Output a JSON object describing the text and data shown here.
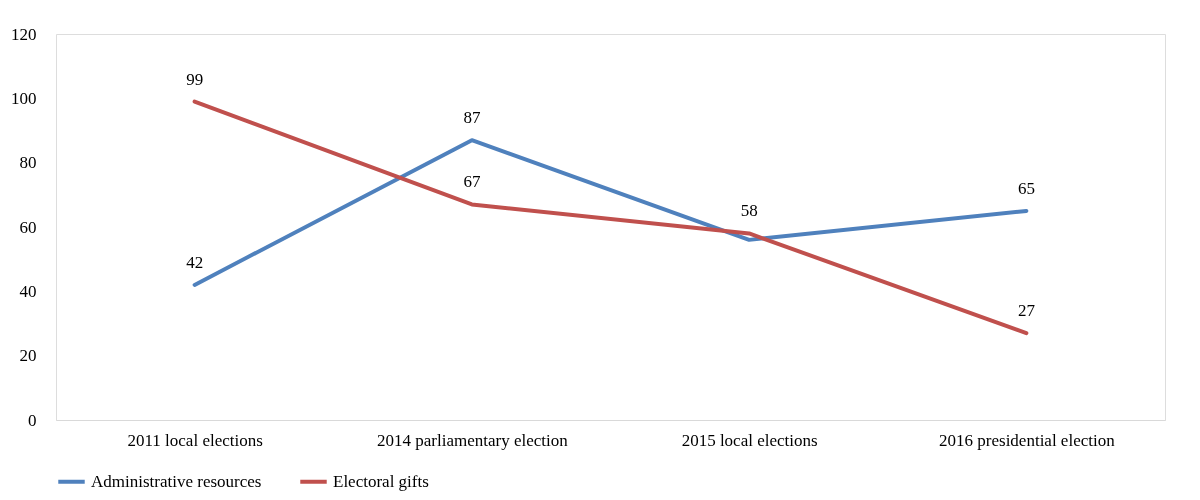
{
  "chart_data": {
    "type": "line",
    "categories": [
      "2011 local elections",
      "2014 parliamentary election",
      "2015 local elections",
      "2016 presidential election"
    ],
    "series": [
      {
        "name": "Administrative resources",
        "color": "#4f81bd",
        "values": [
          42,
          87,
          56,
          65
        ],
        "value_labels": [
          "42",
          "87",
          null,
          "65"
        ]
      },
      {
        "name": "Electoral gifts",
        "color": "#c0504d",
        "values": [
          99,
          67,
          58,
          27
        ],
        "value_labels": [
          "99",
          "67",
          "58",
          "27"
        ]
      }
    ],
    "ylim": [
      0,
      120
    ],
    "yticks": [
      0,
      20,
      40,
      60,
      80,
      100,
      120
    ],
    "grid": false,
    "legend": "bottom",
    "marker": "none",
    "line_style": "solid"
  }
}
